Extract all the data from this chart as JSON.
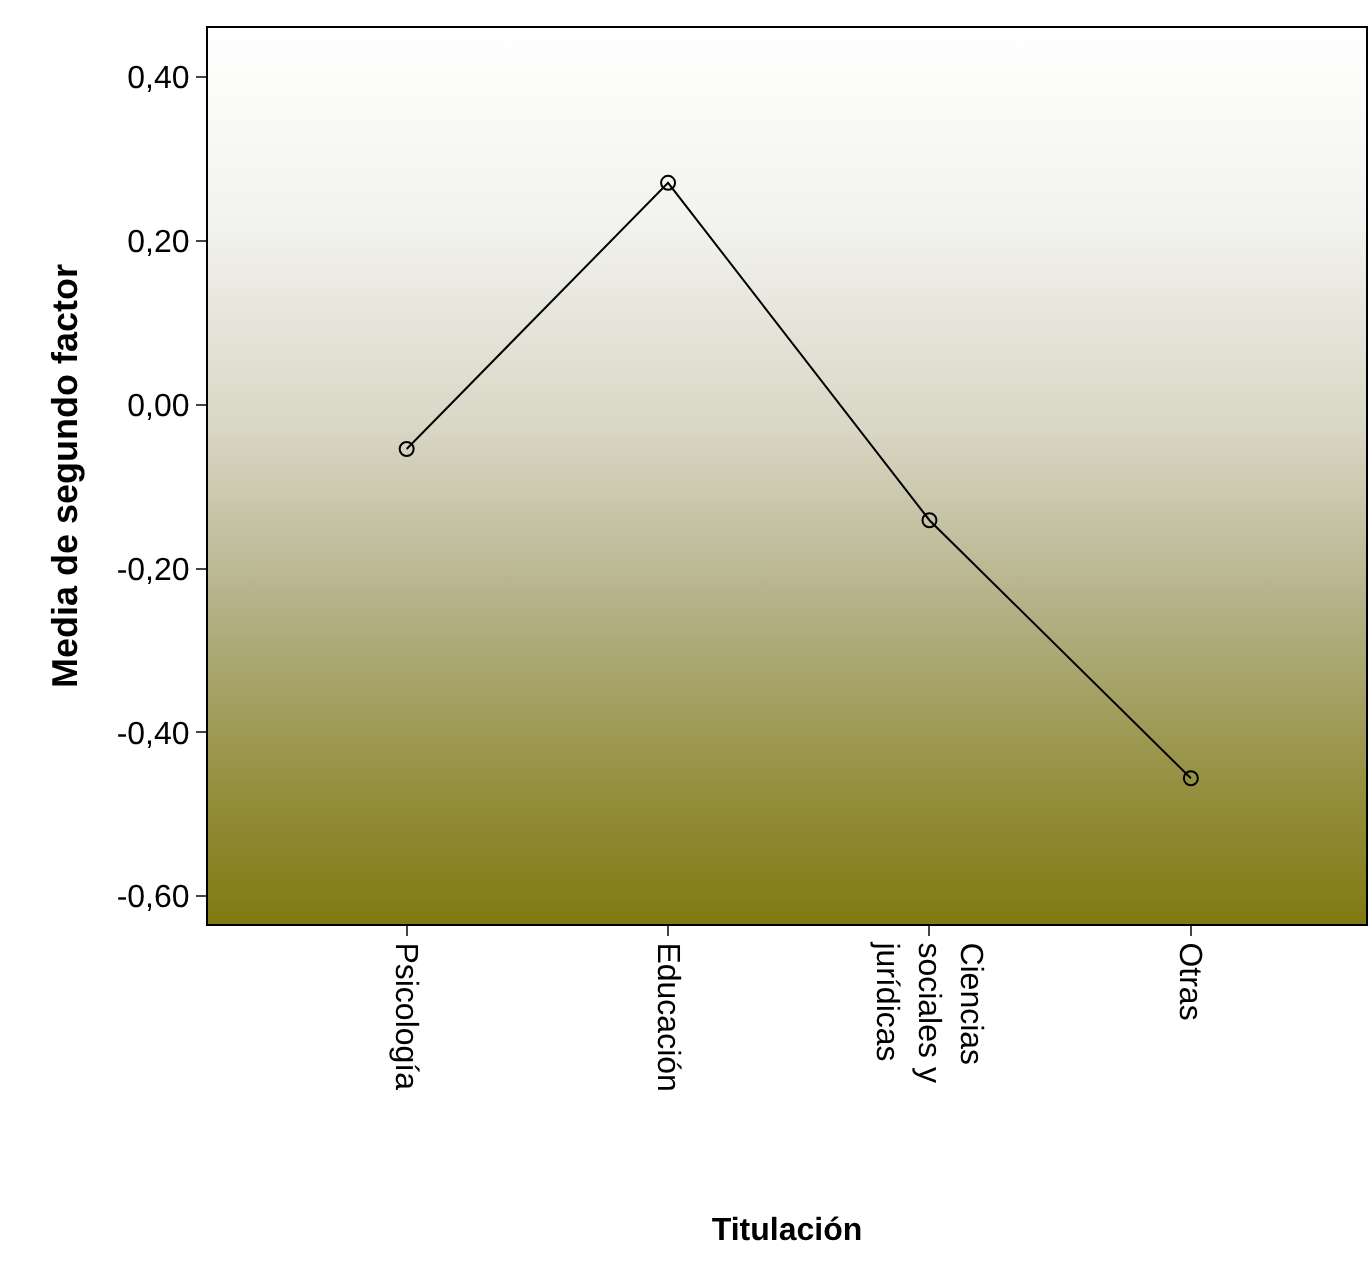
{
  "chart_data": {
    "type": "line",
    "xlabel": "Titulación",
    "ylabel": "Media de segundo factor",
    "categories": [
      "Psicología",
      "Educación",
      "Ciencias sociales y jurídicas",
      "Otras"
    ],
    "series": [
      {
        "color": "#000000",
        "values": [
          -0.054,
          0.271,
          -0.141,
          -0.456
        ]
      }
    ],
    "ylim": [
      -0.634,
      0.46
    ],
    "yticks": [
      {
        "value": -0.6,
        "label": "-0,60"
      },
      {
        "value": -0.4,
        "label": "-0,40"
      },
      {
        "value": -0.2,
        "label": "-0,20"
      },
      {
        "value": 0,
        "label": "0,00"
      },
      {
        "value": 0.2,
        "label": "0,20"
      },
      {
        "value": 0.4,
        "label": "0,40"
      }
    ],
    "grid": false,
    "legend": false,
    "marker": "circle",
    "line_style": "solid"
  }
}
